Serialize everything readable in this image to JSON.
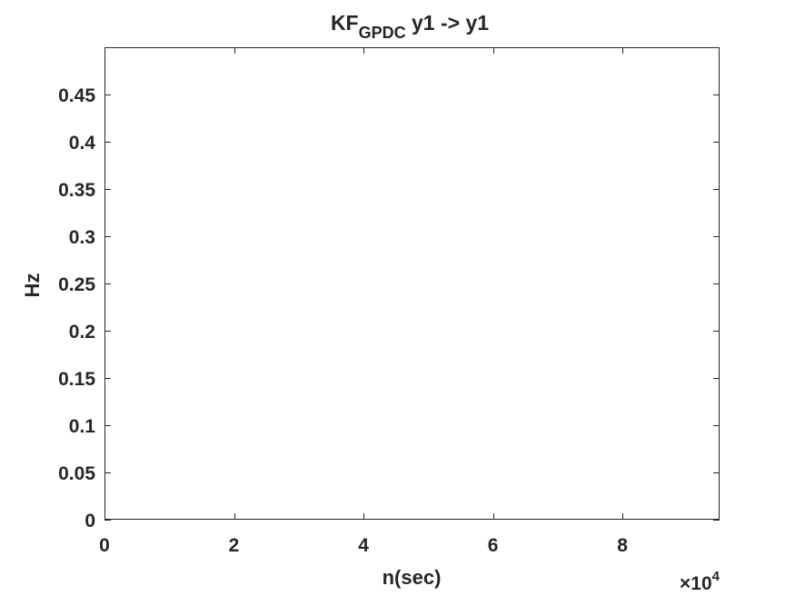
{
  "chart_data": {
    "type": "line",
    "title_main": "KF",
    "title_subscript": "GPDC",
    "title_rest": " y1 -> y1",
    "xlabel": "n(sec)",
    "ylabel": "Hz",
    "xlim": [
      0,
      95000
    ],
    "ylim": [
      0,
      0.5
    ],
    "x_ticks": [
      0,
      20000,
      40000,
      60000,
      80000
    ],
    "x_tick_labels": [
      "0",
      "2",
      "4",
      "6",
      "8"
    ],
    "x_exponent_prefix": "×10",
    "x_exponent_power": "4",
    "y_ticks": [
      0,
      0.05,
      0.1,
      0.15,
      0.2,
      0.25,
      0.3,
      0.35,
      0.4,
      0.45
    ],
    "y_tick_labels": [
      "0",
      "0.05",
      "0.1",
      "0.15",
      "0.2",
      "0.25",
      "0.3",
      "0.35",
      "0.4",
      "0.45"
    ],
    "series": [],
    "grid": false,
    "box": true,
    "colors": {
      "axis": "#262626",
      "background": "#ffffff"
    }
  }
}
